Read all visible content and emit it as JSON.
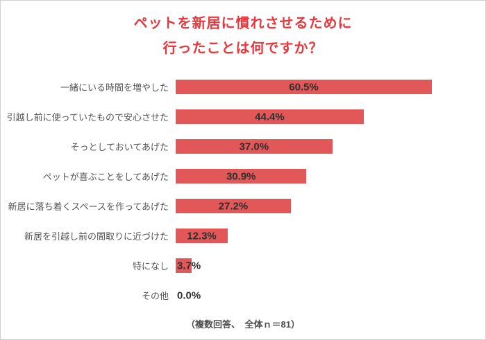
{
  "title": {
    "line1": "ペットを新居に慣れさせるために",
    "line2": "行ったことは何ですか？"
  },
  "footer": "（複数回答、　全体ｎ＝81）",
  "colors": {
    "title": "#e8373d",
    "bar": "#e25757",
    "category_label": "#555555",
    "value_label": "#2e2e2e"
  },
  "chart_data": {
    "type": "bar",
    "orientation": "horizontal",
    "title": "ペットを新居に慣れさせるために行ったことは何ですか？",
    "categories": [
      "一緒にいる時間を増やした",
      "引越し前に使っていたもので安心させた",
      "そっとしておいてあげた",
      "ペットが喜ぶことをしてあげた",
      "新居に落ち着くスペースを作ってあげた",
      "新居を引越し前の間取りに近づけた",
      "特になし",
      "その他"
    ],
    "values": [
      60.5,
      44.4,
      37.0,
      30.9,
      27.2,
      12.3,
      3.7,
      0.0
    ],
    "value_labels": [
      "60.5%",
      "44.4%",
      "37.0%",
      "30.9%",
      "27.2%",
      "12.3%",
      "3.7%",
      "0.0%"
    ],
    "xlim": [
      0,
      62
    ],
    "grid": false,
    "legend": false,
    "note": "（複数回答、　全体ｎ＝81）"
  }
}
